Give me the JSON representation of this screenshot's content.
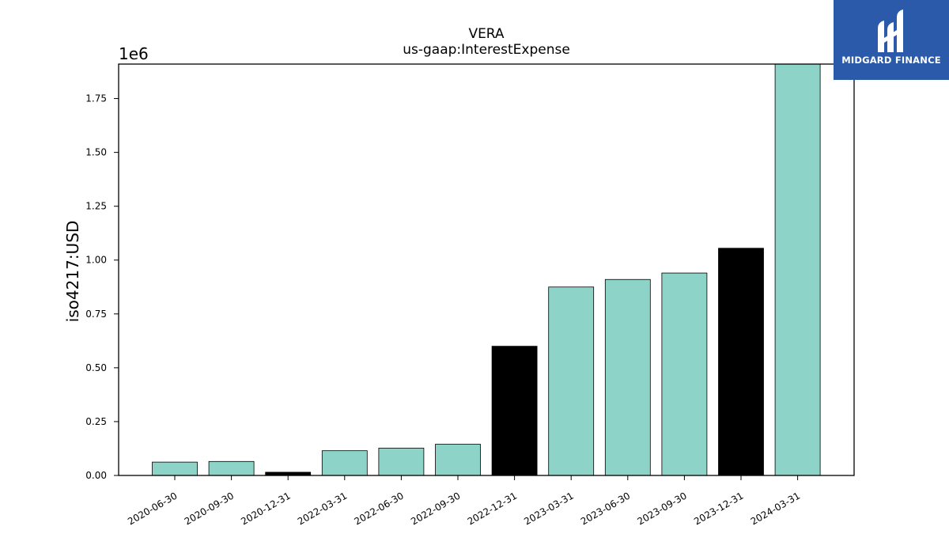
{
  "chart_data": {
    "type": "bar",
    "title": "VERA",
    "subtitle": "us-gaap:InterestExpense",
    "xlabel": "",
    "ylabel": "iso4217:USD",
    "offset_text": "1e6",
    "categories": [
      "2020-06-30",
      "2020-09-30",
      "2020-12-31",
      "2022-03-31",
      "2022-06-30",
      "2022-09-30",
      "2022-12-31",
      "2023-03-31",
      "2023-06-30",
      "2023-09-30",
      "2023-12-31",
      "2024-03-31"
    ],
    "values": [
      62000,
      65000,
      15000,
      115000,
      127000,
      145000,
      600000,
      875000,
      910000,
      940000,
      1055000,
      1910000
    ],
    "highlight": [
      false,
      false,
      true,
      false,
      false,
      false,
      true,
      false,
      false,
      false,
      true,
      false
    ],
    "ylim": [
      0,
      1910000
    ],
    "yticks": [
      0,
      250000,
      500000,
      750000,
      1000000,
      1250000,
      1500000,
      1750000
    ],
    "ytick_labels": [
      "0.00",
      "0.25",
      "0.50",
      "0.75",
      "1.00",
      "1.25",
      "1.50",
      "1.75"
    ],
    "colors": {
      "bar": "#8dd3c7",
      "highlight": "#000000",
      "edge": "#000000"
    },
    "grid": false,
    "legend": "none"
  },
  "logo": {
    "text": "MIDGARD FINANCE",
    "icon": "midgard-logo-icon"
  }
}
